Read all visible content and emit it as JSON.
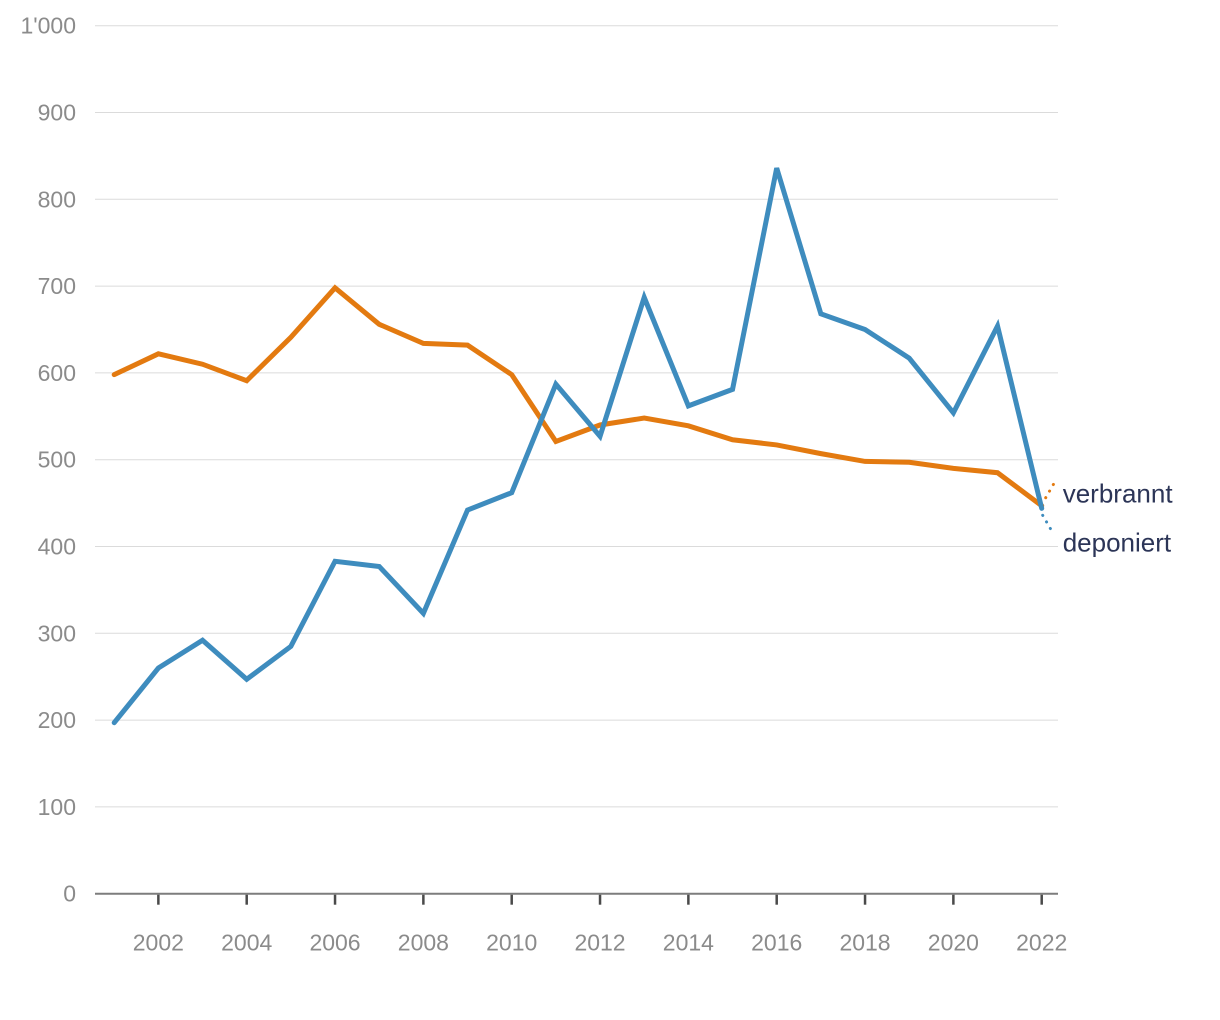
{
  "chart_data": {
    "type": "line",
    "title": "",
    "unit_format": "swiss-apostrophe-thousands",
    "x_years": [
      2001,
      2002,
      2003,
      2004,
      2005,
      2006,
      2007,
      2008,
      2009,
      2010,
      2011,
      2012,
      2013,
      2014,
      2015,
      2016,
      2017,
      2018,
      2019,
      2020,
      2021,
      2022
    ],
    "series": [
      {
        "name": "verbrannt",
        "color": "#E37A10",
        "label_side": "above",
        "values": [
          598,
          622,
          610,
          591,
          641,
          698,
          656,
          634,
          632,
          598,
          521,
          540,
          548,
          539,
          523,
          517,
          507,
          498,
          497,
          490,
          485,
          447
        ]
      },
      {
        "name": "deponiert",
        "color": "#3E8CBE",
        "label_side": "below",
        "values": [
          197,
          260,
          292,
          247,
          285,
          383,
          377,
          323,
          442,
          462,
          587,
          527,
          687,
          562,
          581,
          836,
          668,
          650,
          617,
          554,
          654,
          444
        ]
      }
    ],
    "ylim": [
      0,
      1000
    ],
    "ytick_step": 100,
    "yticks": [
      {
        "value": 0,
        "label": "0"
      },
      {
        "value": 100,
        "label": "100"
      },
      {
        "value": 200,
        "label": "200"
      },
      {
        "value": 300,
        "label": "300"
      },
      {
        "value": 400,
        "label": "400"
      },
      {
        "value": 500,
        "label": "500"
      },
      {
        "value": 600,
        "label": "600"
      },
      {
        "value": 700,
        "label": "700"
      },
      {
        "value": 800,
        "label": "800"
      },
      {
        "value": 900,
        "label": "900"
      },
      {
        "value": 1000,
        "label": "1'000"
      }
    ],
    "xticks": [
      {
        "year": 2002,
        "label": "2002"
      },
      {
        "year": 2004,
        "label": "2004"
      },
      {
        "year": 2006,
        "label": "2006"
      },
      {
        "year": 2008,
        "label": "2008"
      },
      {
        "year": 2010,
        "label": "2010"
      },
      {
        "year": 2012,
        "label": "2012"
      },
      {
        "year": 2014,
        "label": "2014"
      },
      {
        "year": 2016,
        "label": "2016"
      },
      {
        "year": 2018,
        "label": "2018"
      },
      {
        "year": 2020,
        "label": "2020"
      },
      {
        "year": 2022,
        "label": "2022"
      }
    ],
    "grid": true,
    "legend_position": "line-end-labels",
    "style": {
      "grid_color": "#DBDBDB",
      "axis_color": "#7D7D7D",
      "tick_color": "#4A4A4A",
      "tick_label_color": "#8B8B8B",
      "end_label_color": "#2C3557",
      "background": "#FFFFFF"
    }
  }
}
